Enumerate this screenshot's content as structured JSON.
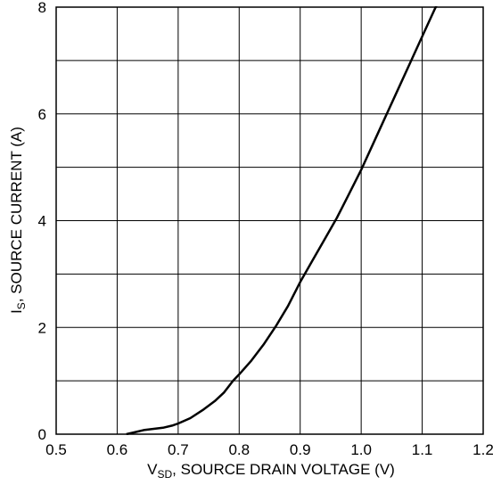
{
  "chart_data": {
    "type": "line",
    "xlabel_main": "V",
    "xlabel_sub": "SD",
    "xlabel_rest": ", SOURCE DRAIN VOLTAGE (V)",
    "ylabel_main": "I",
    "ylabel_sub": "S",
    "ylabel_rest": ", SOURCE CURRENT (A)",
    "xlim": [
      0.5,
      1.2
    ],
    "ylim": [
      0,
      8
    ],
    "x_ticks": [
      0.5,
      0.6,
      0.7,
      0.8,
      0.9,
      1.0,
      1.1,
      1.2
    ],
    "x_tick_labels": [
      "0.5",
      "0.6",
      "0.7",
      "0.8",
      "0.9",
      "1.0",
      "1.1",
      "1.2"
    ],
    "y_ticks": [
      0,
      2,
      4,
      6,
      8
    ],
    "y_tick_labels": [
      "0",
      "2",
      "4",
      "6",
      "8"
    ],
    "y_grid": [
      0,
      1,
      2,
      3,
      4,
      5,
      6,
      7,
      8
    ],
    "grid": true,
    "series": [
      {
        "color": "#000000",
        "x": [
          0.615,
          0.63,
          0.645,
          0.66,
          0.675,
          0.69,
          0.7,
          0.72,
          0.74,
          0.76,
          0.775,
          0.79,
          0.8,
          0.82,
          0.84,
          0.86,
          0.88,
          0.9,
          0.92,
          0.94,
          0.96,
          0.98,
          1.0,
          1.02,
          1.04,
          1.06,
          1.08,
          1.1,
          1.12,
          1.135
        ],
        "y": [
          0.0,
          0.04,
          0.08,
          0.1,
          0.12,
          0.16,
          0.2,
          0.3,
          0.45,
          0.62,
          0.78,
          1.0,
          1.12,
          1.38,
          1.68,
          2.02,
          2.4,
          2.85,
          3.25,
          3.65,
          4.05,
          4.5,
          4.95,
          5.45,
          5.95,
          6.45,
          6.95,
          7.45,
          7.95,
          8.3
        ]
      }
    ]
  }
}
